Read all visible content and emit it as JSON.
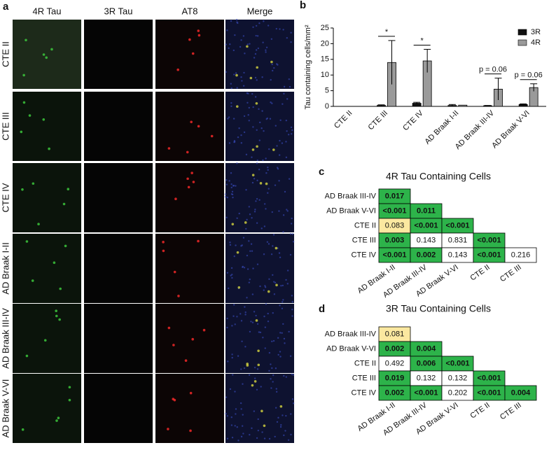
{
  "panel_labels": [
    "a",
    "b",
    "c",
    "d"
  ],
  "panel_a": {
    "columns": [
      "4R Tau",
      "3R Tau",
      "AT8",
      "Merge"
    ],
    "rows": [
      "CTE II",
      "CTE III",
      "CTE IV",
      "AD Braak I-II",
      "AD Braak III-IV",
      "AD Braak V-VI"
    ]
  },
  "chart_data": {
    "type": "bar",
    "y_label": "Tau containing cells/mm²",
    "categories": [
      "CTE II",
      "CTE III",
      "CTE IV",
      "AD Braak I-II",
      "AD Braak III-IV",
      "AD Braak V-VI"
    ],
    "series": [
      {
        "name": "3R",
        "color": "#111111",
        "values": [
          0,
          0.3,
          1.0,
          0.3,
          0.2,
          0.6
        ],
        "errors": [
          0,
          0.2,
          0.3,
          0.3,
          0.1,
          0.2
        ]
      },
      {
        "name": "4R",
        "color": "#9a9a9a",
        "values": [
          0,
          14,
          14.5,
          0.4,
          5.5,
          6
        ],
        "errors": [
          0,
          7,
          3.7,
          0,
          3.5,
          1.2
        ]
      }
    ],
    "ylim": [
      0,
      25
    ],
    "yticks": [
      0,
      5,
      10,
      15,
      20,
      25
    ],
    "legend": "top-right",
    "annotations": [
      {
        "text": "*",
        "category": 1
      },
      {
        "text": "*",
        "category": 2
      },
      {
        "text": "p = 0.06",
        "category": 4
      },
      {
        "text": "p = 0.06",
        "category": 5
      }
    ]
  },
  "tables": [
    {
      "title": "4R Tau Containing Cells",
      "row_labels": [
        "AD Braak III-IV",
        "AD Braak V-VI",
        "CTE II",
        "CTE III",
        "CTE IV"
      ],
      "col_labels": [
        "AD Braak I-II",
        "AD Braak III-IV",
        "AD Braak V-VI",
        "CTE II",
        "CTE III"
      ],
      "rows": [
        [
          {
            "value": "0.017",
            "color": "green"
          }
        ],
        [
          {
            "value": "<0.001",
            "color": "green"
          },
          {
            "value": "0.011",
            "color": "green"
          }
        ],
        [
          {
            "value": "0.083",
            "color": "yellow"
          },
          {
            "value": "<0.001",
            "color": "green"
          },
          {
            "value": "<0.001",
            "color": "green"
          }
        ],
        [
          {
            "value": "0.003",
            "color": "green"
          },
          {
            "value": "0.143",
            "color": "white"
          },
          {
            "value": "0.831",
            "color": "white"
          },
          {
            "value": "<0.001",
            "color": "green"
          }
        ],
        [
          {
            "value": "<0.001",
            "color": "green"
          },
          {
            "value": "0.002",
            "color": "green"
          },
          {
            "value": "0.143",
            "color": "white"
          },
          {
            "value": "<0.001",
            "color": "green"
          },
          {
            "value": "0.216",
            "color": "white"
          }
        ]
      ]
    },
    {
      "title": "3R Tau Containing Cells",
      "row_labels": [
        "AD Braak III-IV",
        "AD Braak V-VI",
        "CTE II",
        "CTE III",
        "CTE IV"
      ],
      "col_labels": [
        "AD Braak I-II",
        "AD Braak III-IV",
        "AD Braak V-VI",
        "CTE II",
        "CTE III"
      ],
      "rows": [
        [
          {
            "value": "0.081",
            "color": "yellow"
          }
        ],
        [
          {
            "value": "0.002",
            "color": "green"
          },
          {
            "value": "0.004",
            "color": "green"
          }
        ],
        [
          {
            "value": "0.492",
            "color": "white"
          },
          {
            "value": "0.006",
            "color": "green"
          },
          {
            "value": "<0.001",
            "color": "green"
          }
        ],
        [
          {
            "value": "0.019",
            "color": "green"
          },
          {
            "value": "0.132",
            "color": "white"
          },
          {
            "value": "0.132",
            "color": "white"
          },
          {
            "value": "<0.001",
            "color": "green"
          }
        ],
        [
          {
            "value": "0.002",
            "color": "green"
          },
          {
            "value": "<0.001",
            "color": "green"
          },
          {
            "value": "0.202",
            "color": "white"
          },
          {
            "value": "<0.001",
            "color": "green"
          },
          {
            "value": "0.004",
            "color": "green"
          }
        ]
      ]
    }
  ]
}
